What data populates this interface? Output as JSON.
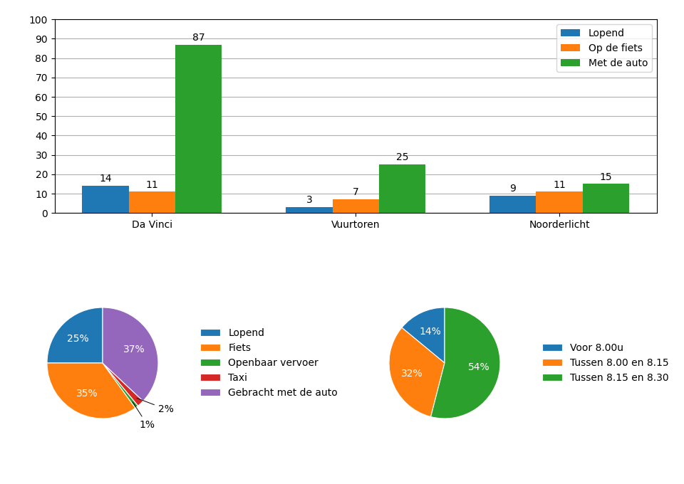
{
  "chart_data": [
    {
      "type": "bar",
      "categories": [
        "Da Vinci",
        "Vuurtoren",
        "Noorderlicht"
      ],
      "series": [
        {
          "name": "Lopend",
          "values": [
            14,
            3,
            9
          ]
        },
        {
          "name": "Op de fiets",
          "values": [
            11,
            7,
            11
          ]
        },
        {
          "name": "Met de auto",
          "values": [
            87,
            25,
            15
          ]
        }
      ],
      "ylim": [
        0,
        100
      ],
      "yticks": [
        0,
        10,
        20,
        30,
        40,
        50,
        60,
        70,
        80,
        90,
        100
      ],
      "grid": true,
      "legend": "upper right",
      "data_labels": true
    },
    {
      "type": "pie",
      "categories": [
        "Lopend",
        "Fiets",
        "Openbaar vervoer",
        "Taxi",
        "Gebracht met de auto"
      ],
      "values": [
        25,
        35,
        1,
        2,
        37
      ],
      "value_labels": [
        "25%",
        "35%",
        "1%",
        "2%",
        "37%"
      ],
      "data_labels": true,
      "legend": "center left"
    },
    {
      "type": "pie",
      "categories": [
        "Voor 8.00u",
        "Tussen 8.00 en 8.15",
        "Tussen 8.15 en 8.30"
      ],
      "values": [
        14,
        32,
        54
      ],
      "value_labels": [
        "14%",
        "32%",
        "54%"
      ],
      "data_labels": true,
      "legend": "center left"
    }
  ]
}
